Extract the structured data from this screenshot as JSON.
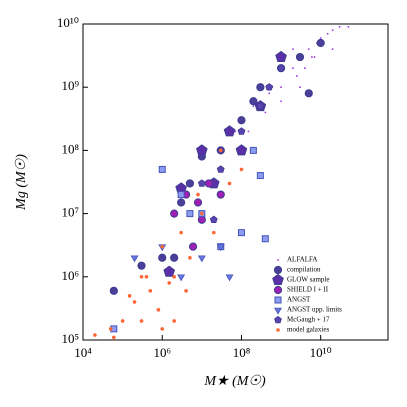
{
  "chart_data": {
    "type": "scatter",
    "x_label": "M★ (M☉)",
    "y_label": "Mg (M☉)",
    "xscale": "log",
    "yscale": "log",
    "xlim": [
      10000.0,
      500000000000.0
    ],
    "ylim": [
      100000.0,
      10000000000.0
    ],
    "xticks": [
      {
        "value": 10000.0,
        "label": "10⁴"
      },
      {
        "value": 1000000.0,
        "label": "10⁶"
      },
      {
        "value": 100000000.0,
        "label": "10⁸"
      },
      {
        "value": 10000000000.0,
        "label": "10¹⁰"
      }
    ],
    "yticks": [
      {
        "value": 100000.0,
        "label": "10⁵"
      },
      {
        "value": 1000000.0,
        "label": "10⁶"
      },
      {
        "value": 10000000.0,
        "label": "10⁷"
      },
      {
        "value": 100000000.0,
        "label": "10⁸"
      },
      {
        "value": 1000000000.0,
        "label": "10⁹"
      },
      {
        "value": 10000000000.0,
        "label": "10¹⁰"
      }
    ],
    "legend": "lower right",
    "series": [
      {
        "name": "ALFALFA",
        "color": "#9b33dd",
        "marker": "dot",
        "x": [
          100000000.0,
          200000000.0,
          500000000.0,
          1000000000.0,
          2000000000.0,
          3000000000.0,
          5000000000.0,
          10000000000.0,
          20000000000.0,
          30000000000.0,
          4000000000.0,
          8000000000.0,
          15000000000.0,
          600000000.0,
          300000000.0,
          70000000.0,
          150000000.0,
          2500000000.0,
          6000000000.0,
          12000000000.0,
          400000000.0,
          900000000.0,
          2000000000.0,
          50000000000.0,
          30000000.0,
          50000000.0,
          1000000000.0,
          3000000000.0,
          7000000000.0,
          20000000000.0
        ],
        "y": [
          300000000.0,
          500000000.0,
          800000000.0,
          1000000000.0,
          2000000000.0,
          3000000000.0,
          4000000000.0,
          6000000000.0,
          8000000000.0,
          9000000000.0,
          2000000000.0,
          5000000000.0,
          7000000000.0,
          1000000000.0,
          600000000.0,
          200000000.0,
          200000000.0,
          1500000000.0,
          3000000000.0,
          5000000000.0,
          400000000.0,
          2000000000.0,
          4000000000.0,
          9000000000.0,
          100000000.0,
          200000000.0,
          600000000.0,
          1000000000.0,
          3000000000.0,
          4000000000.0
        ]
      },
      {
        "name": "compilation",
        "color": "#4b3f9a",
        "marker": "circle",
        "x": [
          60000.0,
          300000.0,
          1000000.0,
          3000000.0,
          5000000.0,
          10000000.0,
          30000000.0,
          100000000.0,
          300000000.0,
          1000000000.0,
          3000000000.0,
          10000000000.0,
          5000000000.0,
          200000000.0,
          2000000.0
        ],
        "y": [
          600000.0,
          1500000.0,
          2000000.0,
          15000000.0,
          30000000.0,
          80000000.0,
          100000000.0,
          300000000.0,
          1000000000.0,
          2000000000.0,
          3000000000.0,
          5000000000.0,
          800000000.0,
          600000000.0,
          2000000.0
        ]
      },
      {
        "name": "GLOW sample",
        "color": "#5b2fa8",
        "marker": "pentagon",
        "x": [
          1500000.0,
          3000000.0,
          10000000.0,
          20000000.0,
          50000000.0,
          100000000.0,
          300000000.0,
          1000000000.0
        ],
        "y": [
          1200000.0,
          25000000.0,
          100000000.0,
          30000000.0,
          200000000.0,
          100000000.0,
          500000000.0,
          3000000000.0
        ]
      },
      {
        "name": "SHIELD I + II",
        "color": "#a01fb5",
        "marker": "circle",
        "x": [
          2000000.0,
          4000000.0,
          8000000.0,
          15000000.0,
          30000000.0,
          6000000.0,
          10000000.0
        ],
        "y": [
          10000000.0,
          20000000.0,
          15000000.0,
          30000000.0,
          20000000.0,
          3000000.0,
          8000000.0
        ]
      },
      {
        "name": "ANGST",
        "color": "#8c9cf0",
        "marker": "square",
        "x": [
          1000000.0,
          3000000.0,
          10000000.0,
          30000000.0,
          100000000.0,
          300000000.0,
          400000000.0,
          200000000.0,
          5000000.0,
          60000.0
        ],
        "y": [
          50000000.0,
          20000000.0,
          10000000.0,
          3000000.0,
          5000000.0,
          40000000.0,
          4000000.0,
          100000000.0,
          10000000.0,
          150000.0
        ]
      },
      {
        "name": "ANGST upp. limits",
        "color": "#6677dd",
        "marker": "triangle-down",
        "x": [
          200000.0,
          1000000.0,
          3000000.0,
          10000000.0,
          50000000.0,
          30000000.0
        ],
        "y": [
          2000000.0,
          3000000.0,
          1000000.0,
          2000000.0,
          1000000.0,
          3000000.0
        ]
      },
      {
        "name": "McGaugh + 17",
        "color": "#5a44b0",
        "marker": "pentagon-small",
        "x": [
          10000000.0,
          30000000.0,
          100000000.0,
          300000000.0,
          1000000000.0,
          500000000.0,
          20000000.0
        ],
        "y": [
          30000000.0,
          50000000.0,
          200000000.0,
          500000000.0,
          2000000000.0,
          1000000000.0,
          8000000.0
        ]
      },
      {
        "name": "model galaxies",
        "color": "#ff6633",
        "marker": "dot-large",
        "x": [
          20000.0,
          50000.0,
          100000.0,
          200000.0,
          300000.0,
          500000.0,
          1000000.0,
          2000000.0,
          3000000.0,
          5000000.0,
          10000000.0,
          20000000.0,
          50000000.0,
          100000000.0,
          300000.0,
          800000.0,
          1500000.0,
          4000000.0,
          8000000.0,
          1000000.0,
          400000.0,
          2000000.0,
          60000.0,
          30000000.0,
          150000.0
        ],
        "y": [
          120000.0,
          150000.0,
          200000.0,
          400000.0,
          1000000.0,
          600000.0,
          3000000.0,
          1000000.0,
          5000000.0,
          2000000.0,
          10000000.0,
          5000000.0,
          30000000.0,
          50000000.0,
          200000.0,
          300000.0,
          800000.0,
          600000.0,
          20000000.0,
          150000.0,
          1000000.0,
          200000.0,
          110000.0,
          100000000.0,
          500000.0
        ]
      }
    ]
  }
}
